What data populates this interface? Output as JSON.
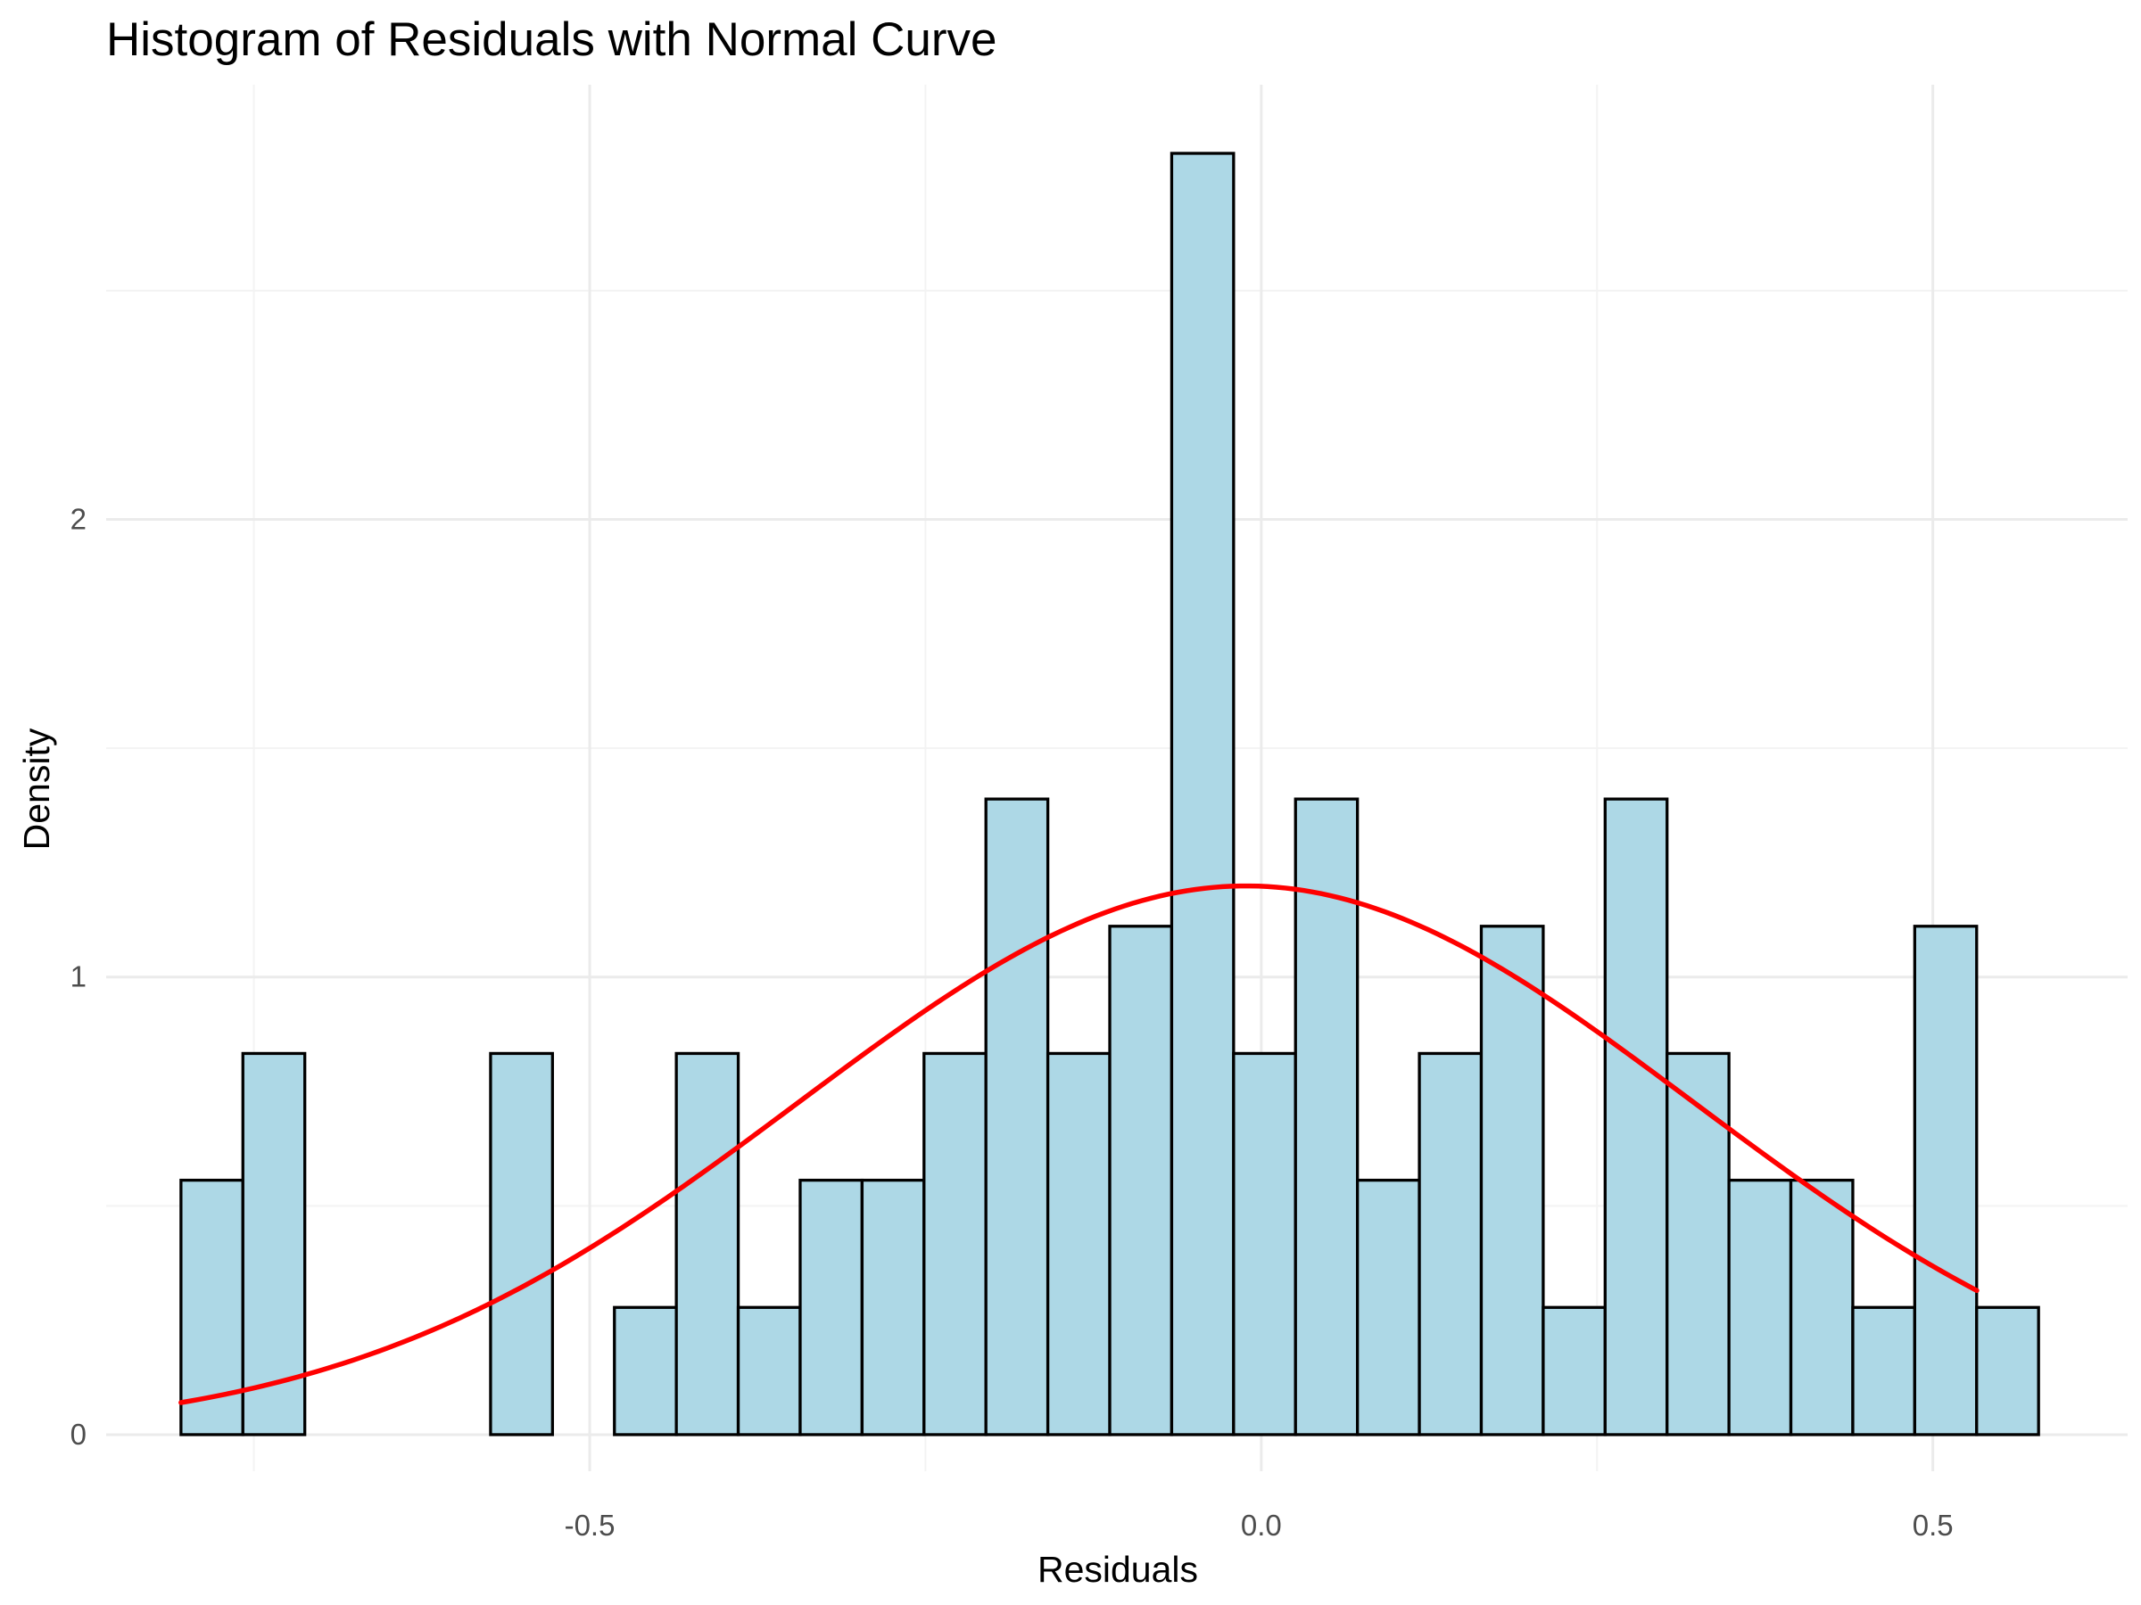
{
  "chart_data": {
    "type": "bar",
    "title": "Histogram of Residuals with Normal Curve",
    "xlabel": "Residuals",
    "ylabel": "Density",
    "xlim": [
      -0.86,
      0.645
    ],
    "ylim": [
      -0.08,
      2.95
    ],
    "x_ticks": [
      -0.5,
      0.0,
      0.5
    ],
    "x_tick_labels": [
      "-0.5",
      "0.0",
      "0.5"
    ],
    "x_minor_ticks": [
      -0.75,
      -0.25,
      0.25
    ],
    "y_ticks": [
      0,
      1,
      2
    ],
    "y_tick_labels": [
      "0",
      "1",
      "2"
    ],
    "y_minor_ticks": [
      0.5,
      1.5,
      2.5
    ],
    "grid": true,
    "histogram": {
      "bin_width": 0.0461,
      "bin_start": -0.8043,
      "densities": [
        0.556,
        0.833,
        0,
        0,
        0,
        0.833,
        0,
        0.278,
        0.833,
        0.278,
        0.556,
        0.556,
        0.833,
        1.389,
        0.833,
        1.111,
        2.8,
        0.833,
        1.389,
        0.556,
        0.833,
        1.111,
        0.278,
        1.389,
        0.833,
        0.556,
        0.556,
        0.278,
        1.111,
        0.278
      ],
      "fill": "#add8e6",
      "edge": "#000000"
    },
    "series": [
      {
        "type": "line",
        "color": "#ff0000",
        "mean": -0.0113,
        "sd": 0.3327,
        "x_range": [
          -0.8043,
          0.5327
        ]
      }
    ]
  }
}
